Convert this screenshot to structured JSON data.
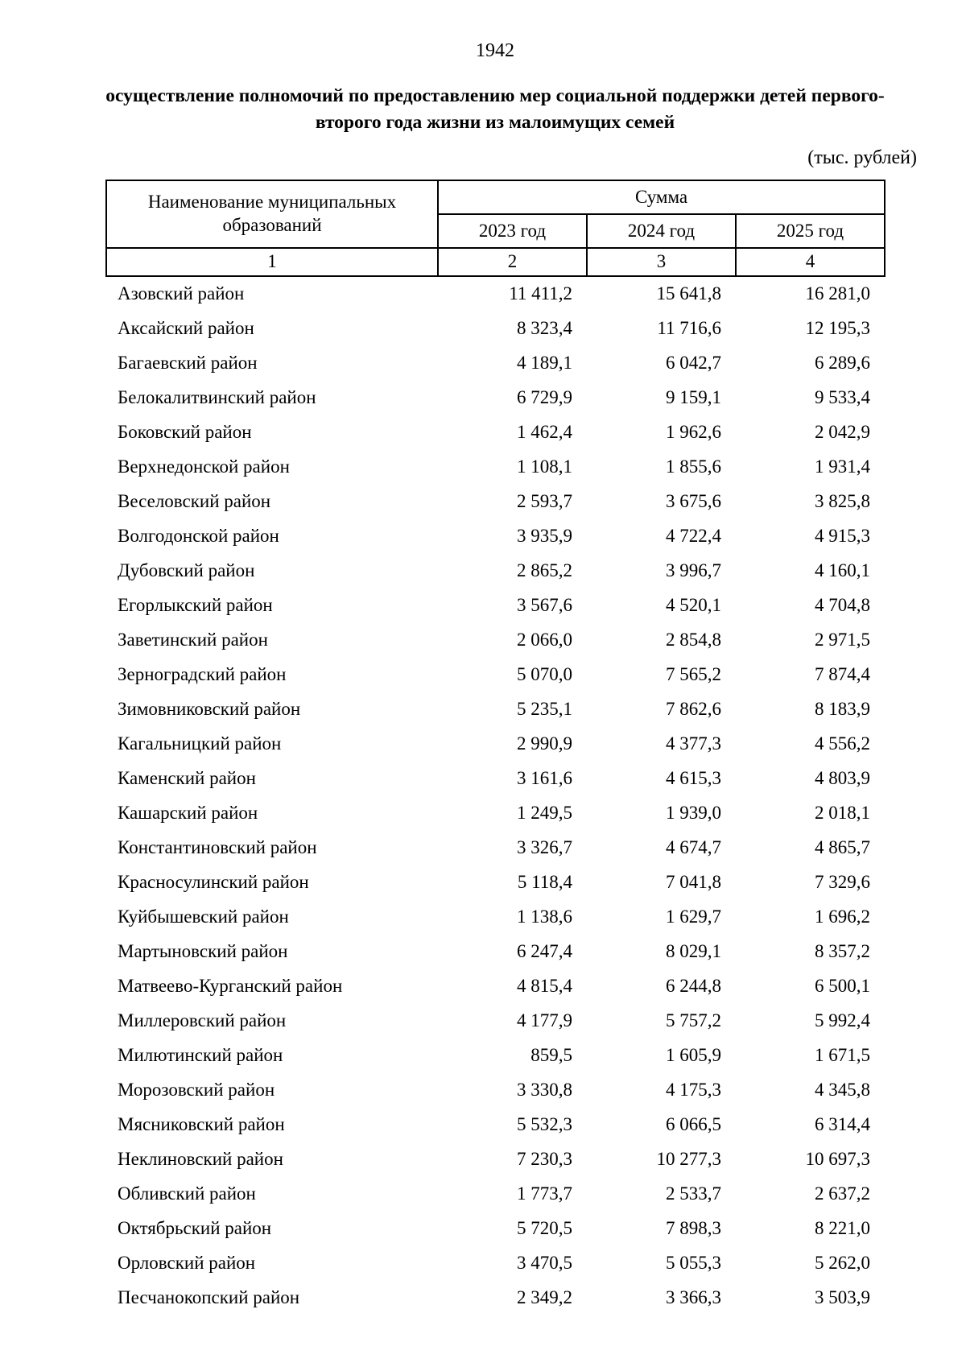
{
  "page": {
    "number": "1942",
    "title": "осуществление полномочий по предоставлению мер социальной поддержки детей первого-второго года жизни из малоимущих семей",
    "unit_note": "(тыс. рублей)"
  },
  "table": {
    "header": {
      "name_column": "Наименование муниципальных образований",
      "group": "Сумма",
      "years": [
        "2023 год",
        "2024 год",
        "2025 год"
      ],
      "index_row": [
        "1",
        "2",
        "3",
        "4"
      ]
    },
    "rows": [
      {
        "name": "Азовский район",
        "y2023": "11 411,2",
        "y2024": "15 641,8",
        "y2025": "16 281,0"
      },
      {
        "name": "Аксайский район",
        "y2023": "8 323,4",
        "y2024": "11 716,6",
        "y2025": "12 195,3"
      },
      {
        "name": "Багаевский район",
        "y2023": "4 189,1",
        "y2024": "6 042,7",
        "y2025": "6 289,6"
      },
      {
        "name": "Белокалитвинский район",
        "y2023": "6 729,9",
        "y2024": "9 159,1",
        "y2025": "9 533,4"
      },
      {
        "name": "Боковский район",
        "y2023": "1 462,4",
        "y2024": "1 962,6",
        "y2025": "2 042,9"
      },
      {
        "name": "Верхнедонской район",
        "y2023": "1 108,1",
        "y2024": "1 855,6",
        "y2025": "1 931,4"
      },
      {
        "name": "Веселовский район",
        "y2023": "2 593,7",
        "y2024": "3 675,6",
        "y2025": "3 825,8"
      },
      {
        "name": "Волгодонской район",
        "y2023": "3 935,9",
        "y2024": "4 722,4",
        "y2025": "4 915,3"
      },
      {
        "name": "Дубовский район",
        "y2023": "2 865,2",
        "y2024": "3 996,7",
        "y2025": "4 160,1"
      },
      {
        "name": "Егорлыкский район",
        "y2023": "3 567,6",
        "y2024": "4 520,1",
        "y2025": "4 704,8"
      },
      {
        "name": "Заветинский район",
        "y2023": "2 066,0",
        "y2024": "2 854,8",
        "y2025": "2 971,5"
      },
      {
        "name": "Зерноградский район",
        "y2023": "5 070,0",
        "y2024": "7 565,2",
        "y2025": "7 874,4"
      },
      {
        "name": "Зимовниковский район",
        "y2023": "5 235,1",
        "y2024": "7 862,6",
        "y2025": "8 183,9"
      },
      {
        "name": "Кагальницкий район",
        "y2023": "2 990,9",
        "y2024": "4 377,3",
        "y2025": "4 556,2"
      },
      {
        "name": "Каменский район",
        "y2023": "3 161,6",
        "y2024": "4 615,3",
        "y2025": "4 803,9"
      },
      {
        "name": "Кашарский район",
        "y2023": "1 249,5",
        "y2024": "1 939,0",
        "y2025": "2 018,1"
      },
      {
        "name": "Константиновский район",
        "y2023": "3 326,7",
        "y2024": "4 674,7",
        "y2025": "4 865,7"
      },
      {
        "name": "Красносулинский район",
        "y2023": "5 118,4",
        "y2024": "7 041,8",
        "y2025": "7 329,6"
      },
      {
        "name": "Куйбышевский район",
        "y2023": "1 138,6",
        "y2024": "1 629,7",
        "y2025": "1 696,2"
      },
      {
        "name": "Мартыновский район",
        "y2023": "6 247,4",
        "y2024": "8 029,1",
        "y2025": "8 357,2"
      },
      {
        "name": "Матвеево-Курганский район",
        "y2023": "4 815,4",
        "y2024": "6 244,8",
        "y2025": "6 500,1"
      },
      {
        "name": "Миллеровский район",
        "y2023": "4 177,9",
        "y2024": "5 757,2",
        "y2025": "5 992,4"
      },
      {
        "name": "Милютинский район",
        "y2023": "859,5",
        "y2024": "1 605,9",
        "y2025": "1 671,5"
      },
      {
        "name": "Морозовский район",
        "y2023": "3 330,8",
        "y2024": "4 175,3",
        "y2025": "4 345,8"
      },
      {
        "name": "Мясниковский район",
        "y2023": "5 532,3",
        "y2024": "6 066,5",
        "y2025": "6 314,4"
      },
      {
        "name": "Неклиновский район",
        "y2023": "7 230,3",
        "y2024": "10 277,3",
        "y2025": "10 697,3"
      },
      {
        "name": "Обливский район",
        "y2023": "1 773,7",
        "y2024": "2 533,7",
        "y2025": "2 637,2"
      },
      {
        "name": "Октябрьский район",
        "y2023": "5 720,5",
        "y2024": "7 898,3",
        "y2025": "8 221,0"
      },
      {
        "name": "Орловский район",
        "y2023": "3 470,5",
        "y2024": "5 055,3",
        "y2025": "5 262,0"
      },
      {
        "name": "Песчанокопский район",
        "y2023": "2 349,2",
        "y2024": "3 366,3",
        "y2025": "3 503,9"
      }
    ]
  }
}
